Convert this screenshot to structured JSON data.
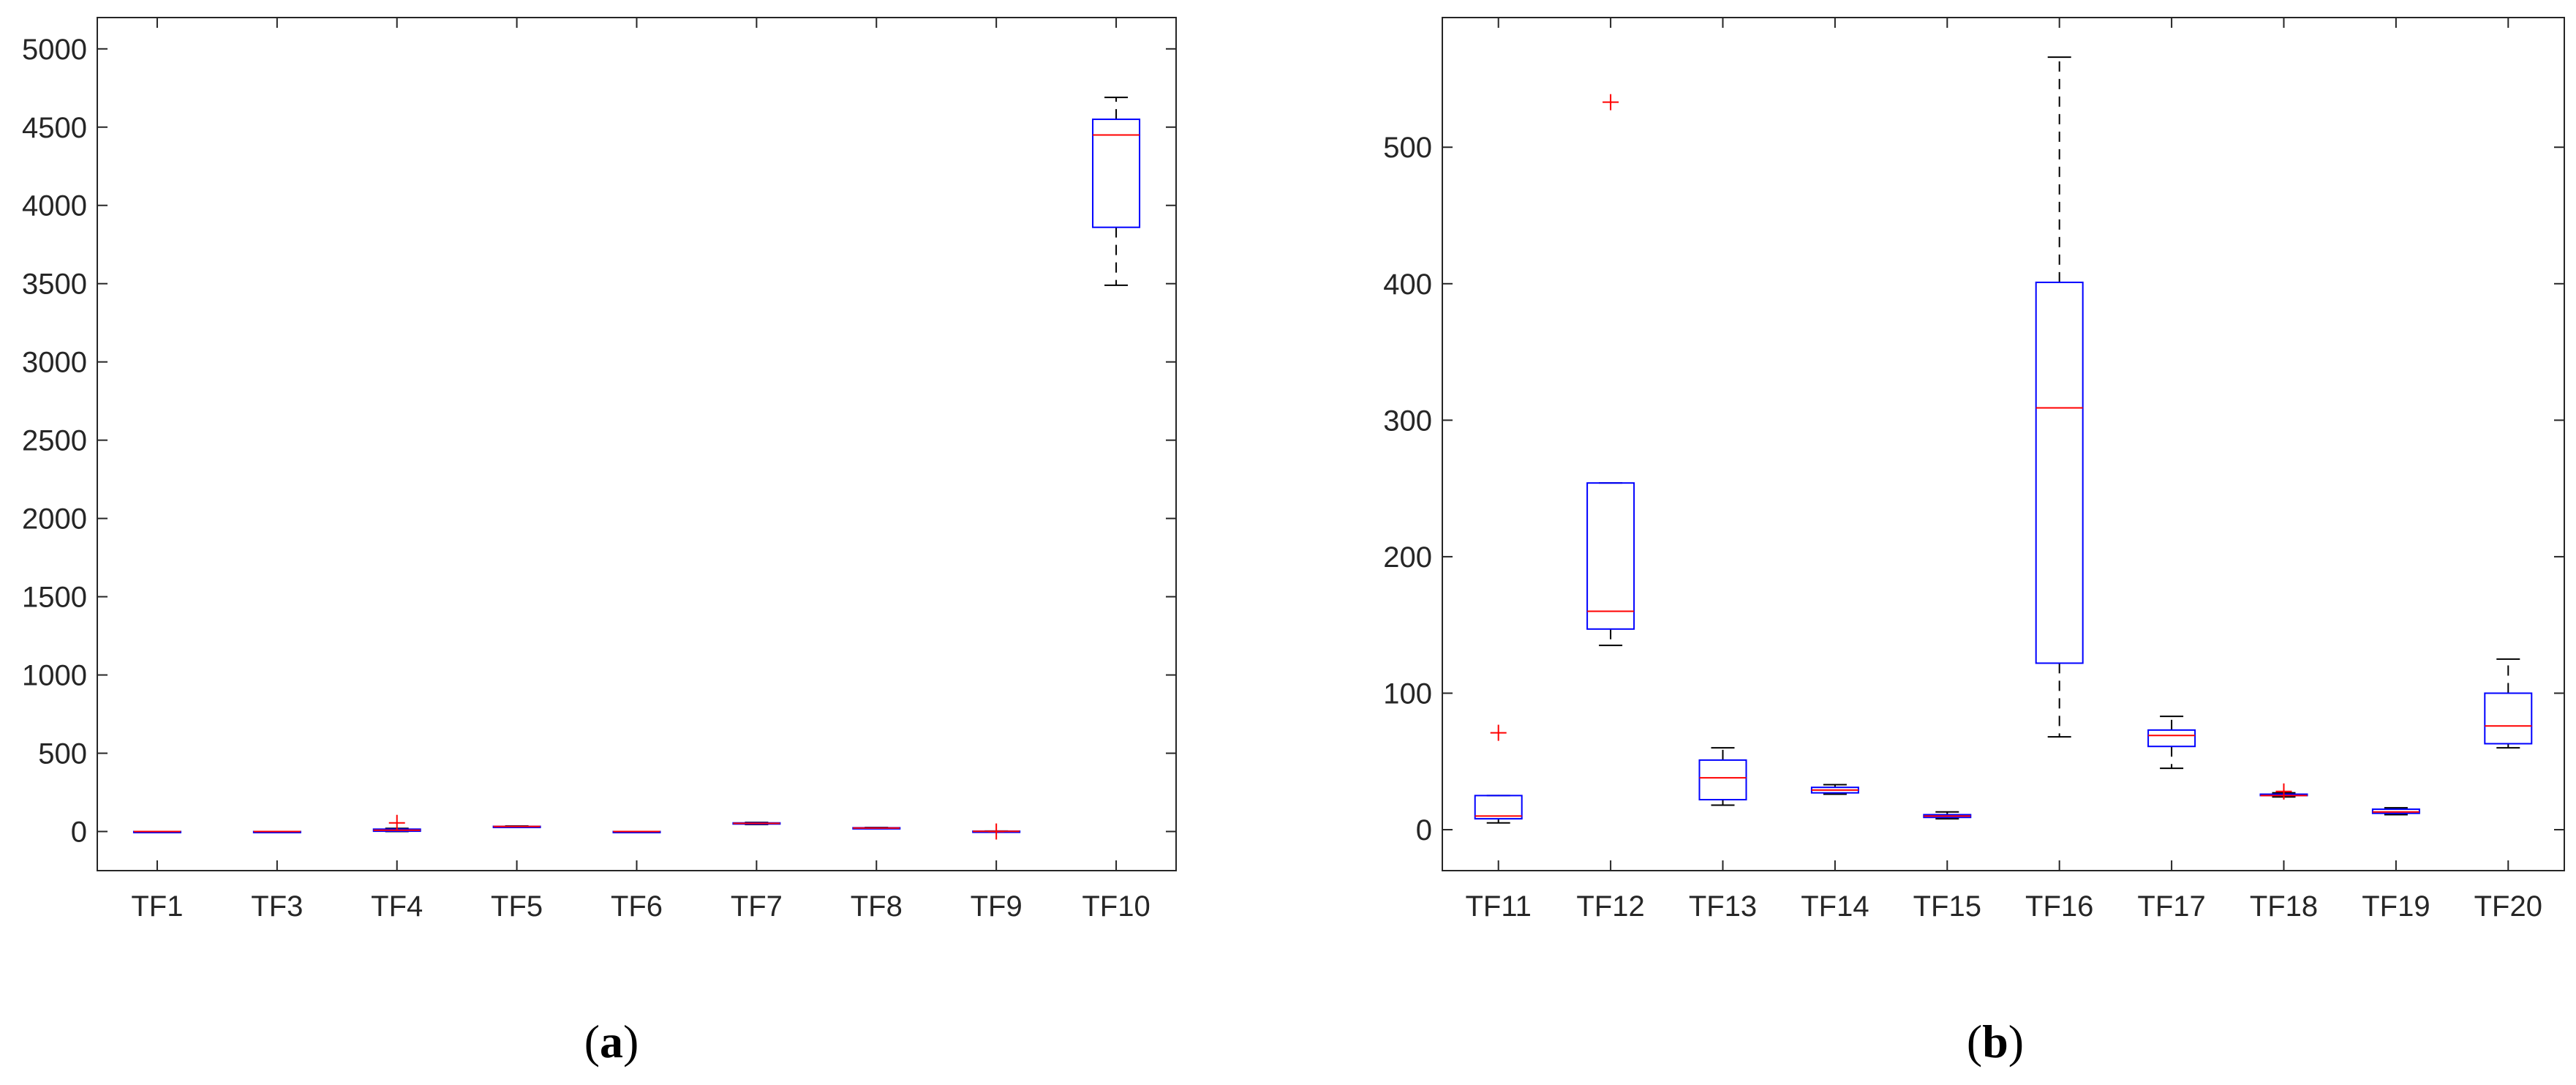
{
  "figure": {
    "panels": [
      {
        "label_open": "(",
        "label_letter": "a",
        "label_close": ")"
      },
      {
        "label_open": "(",
        "label_letter": "b",
        "label_close": ")"
      }
    ]
  },
  "colors": {
    "box": "#0000ff",
    "median": "#ff0000",
    "whisker": "#000000",
    "outlier": "#ff0000",
    "axes": "#262626"
  },
  "chart_data": [
    {
      "type": "boxplot",
      "panel": "a",
      "title": "",
      "xlabel": "",
      "ylabel": "",
      "ylim": [
        -250,
        5200
      ],
      "yticks": [
        0,
        500,
        1000,
        1500,
        2000,
        2500,
        3000,
        3500,
        4000,
        4500,
        5000
      ],
      "ytick_labels": [
        "0",
        "500",
        "1000",
        "1500",
        "2000",
        "2500",
        "3000",
        "3500",
        "4000",
        "4500",
        "5000"
      ],
      "grid": false,
      "categories": [
        "TF1",
        "TF3",
        "TF4",
        "TF5",
        "TF6",
        "TF7",
        "TF8",
        "TF9",
        "TF10"
      ],
      "boxes": [
        {
          "min": 0,
          "q1": 0,
          "median": 0,
          "q3": 0,
          "max": 0,
          "outliers": []
        },
        {
          "min": 0,
          "q1": 0,
          "median": 0,
          "q3": 0,
          "max": 0,
          "outliers": []
        },
        {
          "min": 0,
          "q1": 2,
          "median": 8,
          "q3": 15,
          "max": 20,
          "outliers": [
            55
          ]
        },
        {
          "min": 28,
          "q1": 30,
          "median": 32,
          "q3": 33,
          "max": 35,
          "outliers": []
        },
        {
          "min": 0,
          "q1": 0,
          "median": 0,
          "q3": 0,
          "max": 0,
          "outliers": []
        },
        {
          "min": 45,
          "q1": 48,
          "median": 52,
          "q3": 55,
          "max": 58,
          "outliers": []
        },
        {
          "min": 18,
          "q1": 20,
          "median": 22,
          "q3": 24,
          "max": 26,
          "outliers": []
        },
        {
          "min": 0,
          "q1": 0,
          "median": 1,
          "q3": 2,
          "max": 3,
          "outliers": [
            0
          ]
        },
        {
          "min": 3490,
          "q1": 3860,
          "median": 4450,
          "q3": 4550,
          "max": 4690,
          "outliers": []
        }
      ]
    },
    {
      "type": "boxplot",
      "panel": "b",
      "title": "",
      "xlabel": "",
      "ylabel": "",
      "ylim": [
        -30,
        595
      ],
      "yticks": [
        0,
        100,
        200,
        300,
        400,
        500
      ],
      "ytick_labels": [
        "0",
        "100",
        "200",
        "300",
        "400",
        "500"
      ],
      "grid": false,
      "categories": [
        "TF11",
        "TF12",
        "TF13",
        "TF14",
        "TF15",
        "TF16",
        "TF17",
        "TF18",
        "TF19",
        "TF20"
      ],
      "boxes": [
        {
          "min": 5,
          "q1": 8,
          "median": 10,
          "q3": 25,
          "max": 25,
          "outliers": [
            71
          ]
        },
        {
          "min": 135,
          "q1": 147,
          "median": 160,
          "q3": 254,
          "max": 254,
          "outliers": [
            533
          ]
        },
        {
          "min": 18,
          "q1": 22,
          "median": 38,
          "q3": 51,
          "max": 60,
          "outliers": []
        },
        {
          "min": 26,
          "q1": 27,
          "median": 29,
          "q3": 31,
          "max": 33,
          "outliers": []
        },
        {
          "min": 8,
          "q1": 9,
          "median": 10,
          "q3": 11,
          "max": 13,
          "outliers": []
        },
        {
          "min": 68,
          "q1": 122,
          "median": 309,
          "q3": 401,
          "max": 566,
          "outliers": []
        },
        {
          "min": 45,
          "q1": 61,
          "median": 69,
          "q3": 73,
          "max": 83,
          "outliers": []
        },
        {
          "min": 24,
          "q1": 25,
          "median": 25,
          "q3": 26,
          "max": 27,
          "outliers": [
            28
          ]
        },
        {
          "min": 11,
          "q1": 12,
          "median": 13,
          "q3": 15,
          "max": 16,
          "outliers": []
        },
        {
          "min": 60,
          "q1": 63,
          "median": 76,
          "q3": 100,
          "max": 125,
          "outliers": []
        }
      ]
    }
  ]
}
